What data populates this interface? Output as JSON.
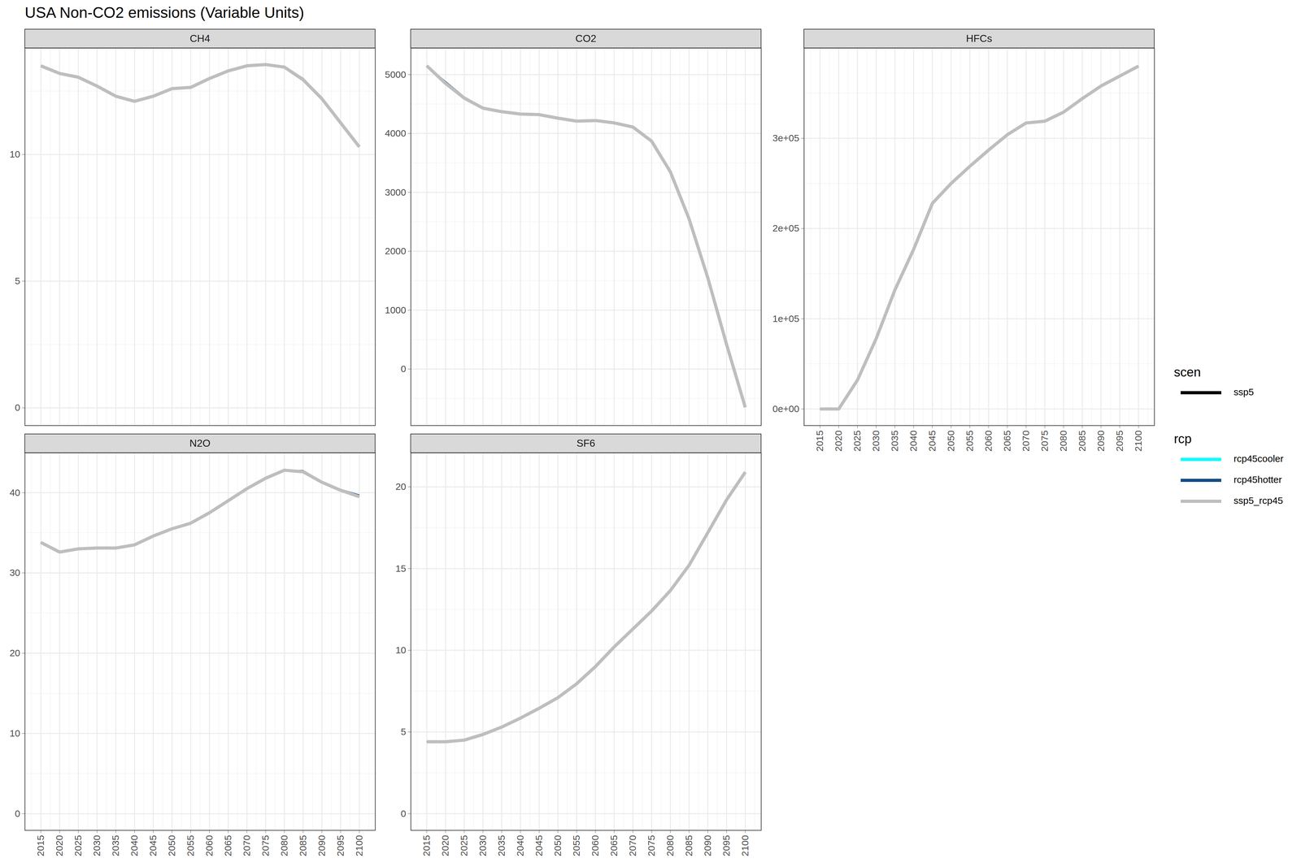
{
  "chart_data": {
    "type": "line",
    "title": "USA Non-CO2 emissions (Variable Units)",
    "legend": "right",
    "grid": true,
    "x": [
      2015,
      2020,
      2025,
      2030,
      2035,
      2040,
      2045,
      2050,
      2055,
      2060,
      2065,
      2070,
      2075,
      2080,
      2085,
      2090,
      2095,
      2100
    ],
    "xlim": [
      2010.75,
      2104.25
    ],
    "xticks": [
      2015,
      2020,
      2025,
      2030,
      2035,
      2040,
      2045,
      2050,
      2055,
      2060,
      2065,
      2070,
      2075,
      2080,
      2085,
      2090,
      2095,
      2100
    ],
    "legend_groups": [
      {
        "title": "scen",
        "entries": [
          {
            "name": "ssp5",
            "color": "#000000"
          }
        ]
      },
      {
        "title": "rcp",
        "entries": [
          {
            "name": "rcp45cooler",
            "color": "#00ffff"
          },
          {
            "name": "rcp45hotter",
            "color": "#104e8b"
          },
          {
            "name": "ssp5_rcp45",
            "color": "#bebebe"
          }
        ]
      }
    ],
    "panels": [
      {
        "title": "CH4",
        "ylim": [
          -0.7,
          14.2
        ],
        "yticks": [
          0,
          5,
          10
        ],
        "series": [
          {
            "name": "rcp45cooler",
            "values": [
              13.5,
              13.2,
              13.05,
              12.7,
              12.3,
              12.1,
              12.3,
              12.6,
              12.65,
              13.0,
              13.3,
              13.5,
              13.55,
              13.45,
              12.95,
              12.2,
              11.25,
              10.3
            ]
          },
          {
            "name": "rcp45hotter",
            "values": [
              13.5,
              13.2,
              13.05,
              12.7,
              12.3,
              12.1,
              12.3,
              12.6,
              12.65,
              13.0,
              13.3,
              13.5,
              13.55,
              13.47,
              13.0,
              12.25,
              11.3,
              10.35
            ]
          },
          {
            "name": "ssp5_rcp45",
            "values": [
              13.5,
              13.2,
              13.05,
              12.7,
              12.3,
              12.1,
              12.3,
              12.6,
              12.65,
              13.0,
              13.3,
              13.5,
              13.55,
              13.45,
              12.95,
              12.2,
              11.25,
              10.3
            ]
          }
        ]
      },
      {
        "title": "CO2",
        "ylim": [
          -960,
          5450
        ],
        "yticks": [
          0,
          1000,
          2000,
          3000,
          4000,
          5000
        ],
        "series": [
          {
            "name": "rcp45cooler",
            "values": [
              5150,
              4850,
              4600,
              4430,
              4370,
              4330,
              4320,
              4260,
              4210,
              4220,
              4180,
              4110,
              3870,
              3350,
              2550,
              1550,
              420,
              -650
            ]
          },
          {
            "name": "rcp45hotter",
            "values": [
              5150,
              4880,
              4620,
              4440,
              4375,
              4335,
              4325,
              4265,
              4215,
              4225,
              4185,
              4115,
              3880,
              3360,
              2560,
              1560,
              430,
              -640
            ]
          },
          {
            "name": "ssp5_rcp45",
            "values": [
              5150,
              4850,
              4600,
              4430,
              4370,
              4330,
              4320,
              4260,
              4210,
              4220,
              4180,
              4110,
              3870,
              3350,
              2550,
              1550,
              420,
              -650
            ]
          }
        ]
      },
      {
        "title": "HFCs",
        "ylim": [
          -18400,
          400000
        ],
        "yticks": [
          {
            "value": 0,
            "label": "0e+00"
          },
          {
            "value": 100000,
            "label": "1e+05"
          },
          {
            "value": 200000,
            "label": "2e+05"
          },
          {
            "value": 300000,
            "label": "3e+05"
          }
        ],
        "series": [
          {
            "name": "rcp45cooler",
            "values": [
              0,
              0,
              32000,
              78000,
              132000,
              177000,
              228000,
              250000,
              269000,
              287000,
              304000,
              317000,
              319000,
              329000,
              344000,
              358000,
              369000,
              380000
            ]
          },
          {
            "name": "rcp45hotter",
            "values": [
              0,
              0,
              32000,
              78000,
              132000,
              177000,
              228000,
              250000,
              269000,
              287000,
              304000,
              317000,
              319000,
              329000,
              344000,
              358000,
              369000,
              380000
            ]
          },
          {
            "name": "ssp5_rcp45",
            "values": [
              0,
              0,
              32000,
              78000,
              132000,
              177000,
              228000,
              250000,
              269000,
              287000,
              304000,
              317000,
              319000,
              329000,
              344000,
              358000,
              369000,
              380000
            ]
          }
        ]
      },
      {
        "title": "N2O",
        "ylim": [
          -2.07,
          44.96
        ],
        "yticks": [
          0,
          10,
          20,
          30,
          40
        ],
        "series": [
          {
            "name": "rcp45cooler",
            "values": [
              33.8,
              32.6,
              33.0,
              33.1,
              33.1,
              33.5,
              34.6,
              35.5,
              36.2,
              37.5,
              39.0,
              40.5,
              41.8,
              42.8,
              42.6,
              41.3,
              40.3,
              39.5
            ]
          },
          {
            "name": "rcp45hotter",
            "values": [
              33.8,
              32.6,
              33.0,
              33.1,
              33.1,
              33.5,
              34.6,
              35.5,
              36.2,
              37.5,
              39.0,
              40.5,
              41.8,
              42.8,
              42.75,
              41.4,
              40.4,
              39.7
            ]
          },
          {
            "name": "ssp5_rcp45",
            "values": [
              33.8,
              32.6,
              33.0,
              33.1,
              33.1,
              33.5,
              34.6,
              35.5,
              36.2,
              37.5,
              39.0,
              40.5,
              41.8,
              42.8,
              42.6,
              41.3,
              40.3,
              39.5
            ]
          }
        ]
      },
      {
        "title": "SF6",
        "ylim": [
          -1.02,
          22.08
        ],
        "yticks": [
          0,
          5,
          10,
          15,
          20
        ],
        "series": [
          {
            "name": "rcp45cooler",
            "values": [
              4.4,
              4.4,
              4.5,
              4.85,
              5.3,
              5.85,
              6.45,
              7.1,
              7.95,
              9.0,
              10.2,
              11.3,
              12.4,
              13.65,
              15.2,
              17.2,
              19.2,
              20.9
            ]
          },
          {
            "name": "rcp45hotter",
            "values": [
              4.4,
              4.4,
              4.5,
              4.85,
              5.3,
              5.85,
              6.45,
              7.1,
              7.95,
              9.0,
              10.2,
              11.3,
              12.4,
              13.65,
              15.2,
              17.2,
              19.2,
              20.9
            ]
          },
          {
            "name": "ssp5_rcp45",
            "values": [
              4.4,
              4.4,
              4.5,
              4.85,
              5.3,
              5.85,
              6.45,
              7.1,
              7.95,
              9.0,
              10.2,
              11.3,
              12.4,
              13.65,
              15.2,
              17.2,
              19.2,
              20.9
            ]
          }
        ]
      }
    ]
  }
}
